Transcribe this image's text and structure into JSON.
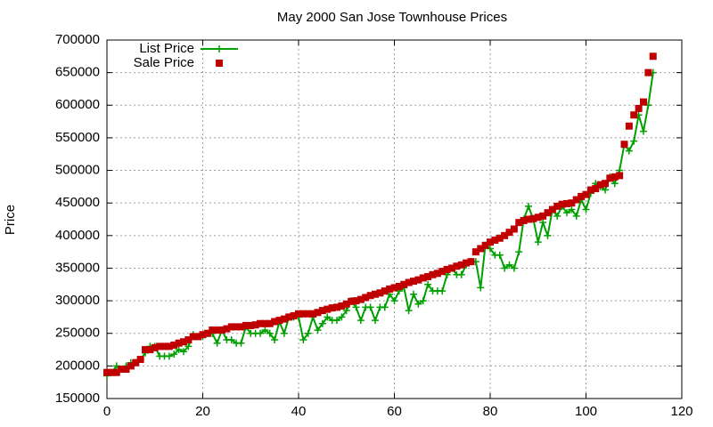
{
  "chart_data": {
    "type": "line",
    "title": "May 2000 San Jose Townhouse Prices",
    "y_label": "Price",
    "x": [
      0,
      1,
      2,
      3,
      4,
      5,
      6,
      7,
      8,
      9,
      10,
      11,
      12,
      13,
      14,
      15,
      16,
      17,
      18,
      19,
      20,
      21,
      22,
      23,
      24,
      25,
      26,
      27,
      28,
      29,
      30,
      31,
      32,
      33,
      34,
      35,
      36,
      37,
      38,
      39,
      40,
      41,
      42,
      43,
      44,
      45,
      46,
      47,
      48,
      49,
      50,
      51,
      52,
      53,
      54,
      55,
      56,
      57,
      58,
      59,
      60,
      61,
      62,
      63,
      64,
      65,
      66,
      67,
      68,
      69,
      70,
      71,
      72,
      73,
      74,
      75,
      76,
      77,
      78,
      79,
      80,
      81,
      82,
      83,
      84,
      85,
      86,
      87,
      88,
      89,
      90,
      91,
      92,
      93,
      94,
      95,
      96,
      97,
      98,
      99,
      100,
      101,
      102,
      103,
      104,
      105,
      106,
      107,
      108,
      109,
      110,
      111,
      112,
      113,
      114
    ],
    "series": [
      {
        "name": "List Price",
        "color": "#00a000",
        "style": "linespoints",
        "marker": "plus",
        "values": [
          185000,
          190000,
          200000,
          195000,
          200000,
          205000,
          205000,
          210000,
          220000,
          230000,
          230000,
          215000,
          215000,
          215000,
          218000,
          225000,
          222000,
          230000,
          248000,
          245000,
          245000,
          250000,
          250000,
          235000,
          255000,
          240000,
          240000,
          235000,
          235000,
          260000,
          250000,
          250000,
          250000,
          255000,
          250000,
          240000,
          268000,
          250000,
          275000,
          275000,
          275000,
          240000,
          250000,
          275000,
          255000,
          265000,
          275000,
          270000,
          270000,
          275000,
          285000,
          300000,
          290000,
          270000,
          290000,
          290000,
          270000,
          290000,
          290000,
          310000,
          300000,
          315000,
          320000,
          285000,
          310000,
          295000,
          300000,
          325000,
          315000,
          315000,
          315000,
          340000,
          350000,
          340000,
          340000,
          355000,
          360000,
          360000,
          320000,
          385000,
          380000,
          370000,
          370000,
          350000,
          355000,
          350000,
          375000,
          425000,
          445000,
          425000,
          390000,
          420000,
          400000,
          440000,
          430000,
          445000,
          435000,
          440000,
          430000,
          455000,
          440000,
          465000,
          480000,
          475000,
          470000,
          490000,
          480000,
          500000,
          540000,
          530000,
          545000,
          585000,
          560000,
          600000,
          650000
        ]
      },
      {
        "name": "Sale Price",
        "color": "#c00000",
        "style": "points",
        "marker": "square",
        "values": [
          190000,
          190000,
          190000,
          195000,
          195000,
          200000,
          205000,
          210000,
          225000,
          225000,
          228000,
          230000,
          230000,
          230000,
          232000,
          235000,
          237000,
          240000,
          245000,
          245000,
          248000,
          250000,
          255000,
          255000,
          255000,
          257000,
          260000,
          260000,
          260000,
          262000,
          262000,
          263000,
          265000,
          265000,
          265000,
          268000,
          270000,
          272000,
          275000,
          277000,
          280000,
          280000,
          280000,
          280000,
          282000,
          285000,
          287000,
          289000,
          290000,
          292000,
          295000,
          299000,
          300000,
          302000,
          305000,
          308000,
          310000,
          312000,
          315000,
          318000,
          320000,
          322000,
          325000,
          328000,
          330000,
          332000,
          335000,
          337000,
          340000,
          342000,
          345000,
          348000,
          350000,
          353000,
          355000,
          358000,
          360000,
          375000,
          380000,
          385000,
          390000,
          393000,
          396000,
          400000,
          405000,
          410000,
          420000,
          423000,
          425000,
          426000,
          428000,
          430000,
          435000,
          440000,
          445000,
          448000,
          449000,
          450000,
          455000,
          460000,
          463000,
          470000,
          472000,
          478000,
          480000,
          488000,
          490000,
          492000,
          540000,
          568000,
          585000,
          595000,
          605000,
          650000,
          675000
        ]
      }
    ],
    "xlim": [
      0,
      120
    ],
    "xticks": [
      0,
      20,
      40,
      60,
      80,
      100,
      120
    ],
    "ylim": [
      150000,
      700000
    ],
    "yticks": [
      150000,
      200000,
      250000,
      300000,
      350000,
      400000,
      450000,
      500000,
      550000,
      600000,
      650000,
      700000
    ],
    "grid": true,
    "legend": "top-left"
  }
}
